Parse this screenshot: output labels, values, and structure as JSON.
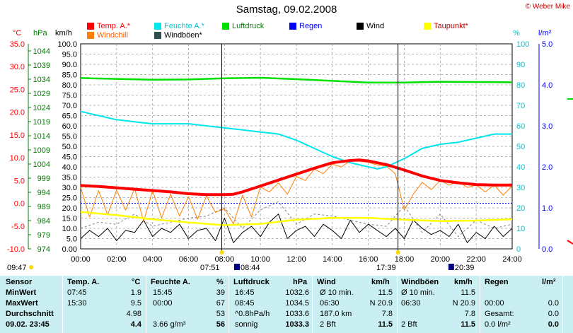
{
  "header": {
    "title": "Samstag, 09.02.2008",
    "copyright": "© Weber Mike"
  },
  "legend": [
    {
      "label": "Temp. A.*",
      "color": "#ff0000"
    },
    {
      "label": "Feuchte A.*",
      "color": "#00e5ee"
    },
    {
      "label": "Luftdruck",
      "color": "#00e000"
    },
    {
      "label": "Regen",
      "color": "#0000ff"
    },
    {
      "label": "Wind",
      "color": "#000000"
    },
    {
      "label": "Taupunkt*",
      "color": "#ffff00"
    },
    {
      "label": "Windchill",
      "color": "#ff8000"
    },
    {
      "label": "Windböen*",
      "color": "#2f4f4f"
    }
  ],
  "units": {
    "celsius": "°C",
    "hpa": "hPa",
    "kmh": "km/h",
    "percent": "%",
    "rain": "l/m²"
  },
  "axis_ticks": {
    "celsius": [
      "35.0",
      "30.0",
      "25.0",
      "20.0",
      "15.0",
      "10.0",
      "5.0",
      "0.0",
      "-5.0",
      "-10.0"
    ],
    "hpa": [
      "1044",
      "1039",
      "1034",
      "1029",
      "1024",
      "1019",
      "1014",
      "1009",
      "1004",
      "999",
      "994",
      "989",
      "984",
      "979",
      "974"
    ],
    "kmh": [
      "100.0",
      "95.0",
      "90.0",
      "85.0",
      "80.0",
      "75.0",
      "70.0",
      "65.0",
      "60.0",
      "55.0",
      "50.0",
      "45.0",
      "40.0",
      "35.0",
      "30.0",
      "25.0",
      "20.0",
      "15.0",
      "10.0",
      "5.0",
      "0.00"
    ],
    "percent": [
      "100",
      "90",
      "80",
      "70",
      "60",
      "50",
      "40",
      "30",
      "20",
      "10",
      "0"
    ],
    "rain": [
      "5.0",
      "4.0",
      "3.0",
      "2.0",
      "1.0",
      "0.0"
    ],
    "time": [
      "00:00",
      "02:00",
      "04:00",
      "06:00",
      "08:00",
      "10:00",
      "12:00",
      "14:00",
      "16:00",
      "18:00",
      "20:00",
      "22:00",
      "24:00"
    ]
  },
  "sun": {
    "sunrise": "07:51",
    "sunset": "17:39",
    "moonrise": "08:44",
    "moonset": "20:39",
    "left_time": "09:47"
  },
  "chart_data": {
    "type": "line",
    "title": "Samstag, 09.02.2008",
    "x_unit": "hours",
    "xlim": [
      0,
      24
    ],
    "ylim_celsius": [
      -10,
      35
    ],
    "ylim_kmh": [
      0,
      100
    ],
    "ylim_percent": [
      0,
      100
    ],
    "ylim_hpa": [
      974,
      1046.5
    ],
    "grid": true,
    "series": [
      {
        "name": "Temp. A.*",
        "axis": "celsius",
        "x": [
          0,
          1,
          2,
          3,
          4,
          5,
          6,
          7,
          8,
          8.5,
          9,
          10,
          11,
          12,
          13,
          14,
          15,
          15.5,
          16,
          17,
          18,
          19,
          20,
          21,
          22,
          23,
          24
        ],
        "y": [
          3.9,
          3.7,
          3.4,
          3.1,
          2.8,
          2.5,
          2.1,
          1.9,
          1.9,
          2.0,
          2.5,
          3.8,
          5.1,
          6.4,
          7.7,
          8.9,
          9.4,
          9.5,
          9.3,
          8.5,
          7.3,
          6.0,
          5.0,
          4.5,
          4.1,
          4.0,
          4.0
        ]
      },
      {
        "name": "Feuchte A.*",
        "axis": "percent",
        "x": [
          0,
          1,
          2,
          3,
          4,
          5,
          6,
          7,
          8,
          9,
          10,
          11,
          12,
          13,
          14,
          15,
          16,
          16.5,
          17,
          18,
          19,
          20,
          21,
          22,
          23,
          24
        ],
        "y": [
          67,
          65,
          63,
          62,
          61,
          61,
          61,
          60,
          59,
          58,
          57,
          56,
          53,
          49,
          45,
          42,
          40,
          39,
          40,
          44,
          49,
          51,
          52,
          54,
          56,
          56
        ]
      },
      {
        "name": "Luftdruck",
        "axis": "hpa",
        "x": [
          0,
          2,
          4,
          6,
          8,
          10,
          12,
          14,
          16,
          18,
          20,
          22,
          24
        ],
        "y": [
          1034.4,
          1034.1,
          1033.8,
          1033.9,
          1034.3,
          1034.5,
          1034.0,
          1033.4,
          1032.8,
          1032.8,
          1033.1,
          1033.0,
          1032.9
        ]
      },
      {
        "name": "Taupunkt*",
        "axis": "celsius",
        "x": [
          0,
          2,
          4,
          6,
          8,
          10,
          12,
          14,
          16,
          18,
          20,
          22,
          24
        ],
        "y": [
          -1.9,
          -2.6,
          -3.5,
          -4.2,
          -4.8,
          -4.5,
          -3.6,
          -3.2,
          -3.2,
          -3.6,
          -3.9,
          -3.8,
          -3.5
        ]
      },
      {
        "name": "Windchill",
        "axis": "celsius",
        "x": [
          0,
          0.5,
          1,
          1.5,
          2,
          2.5,
          3,
          3.5,
          4,
          4.5,
          5,
          5.5,
          6,
          6.5,
          7,
          7.5,
          8,
          8.5,
          9,
          9.5,
          10,
          10.5,
          11,
          11.5,
          12,
          12.5,
          13,
          13.5,
          14,
          14.5,
          15,
          15.5,
          16,
          16.5,
          17,
          17.5,
          18,
          18.5,
          19,
          19.5,
          20,
          20.5,
          21,
          21.5,
          22,
          22.5,
          23,
          23.5,
          24
        ],
        "y": [
          3.5,
          -3.0,
          2.8,
          -2.5,
          2.9,
          -1.5,
          3.2,
          -4.0,
          2.8,
          -3.2,
          2.0,
          -2.8,
          1.5,
          -3.5,
          1.6,
          -2.0,
          -1.2,
          -4.5,
          1.8,
          -3.0,
          3.6,
          2.5,
          4.5,
          2.0,
          5.9,
          5.0,
          7.5,
          6.5,
          8.6,
          8.0,
          9.3,
          9.2,
          9.0,
          8.4,
          8.2,
          6.5,
          -1.5,
          2.0,
          4.6,
          3.0,
          5.0,
          4.0,
          4.8,
          3.5,
          4.0,
          2.5,
          4.0,
          1.8,
          3.8
        ]
      },
      {
        "name": "Wind",
        "axis": "kmh",
        "x": [
          0,
          0.5,
          1,
          1.5,
          2,
          2.5,
          3,
          3.5,
          4,
          4.5,
          5,
          5.5,
          6,
          6.5,
          7,
          7.5,
          8,
          8.5,
          9,
          9.5,
          10,
          10.5,
          11,
          11.5,
          12,
          12.5,
          13,
          13.5,
          14,
          14.5,
          15,
          15.5,
          16,
          16.5,
          17,
          17.5,
          18,
          18.5,
          19,
          19.5,
          20,
          20.5,
          21,
          21.5,
          22,
          22.5,
          23,
          23.5,
          24
        ],
        "y": [
          5,
          9,
          6,
          10,
          4,
          9,
          8,
          14,
          6,
          10,
          8,
          12,
          5,
          9,
          10,
          4,
          15,
          3,
          8,
          11,
          6,
          13,
          17,
          5,
          9,
          11,
          6,
          12,
          9,
          5,
          14,
          8,
          12,
          9,
          6,
          10,
          5,
          14,
          10,
          7,
          9,
          6,
          12,
          3,
          8,
          5,
          11,
          6,
          10
        ]
      },
      {
        "name": "Windböen*",
        "axis": "kmh",
        "x": [
          0,
          1,
          2,
          3,
          4,
          5,
          6,
          7,
          8,
          9,
          10,
          11,
          12,
          13,
          14,
          15,
          16,
          17,
          18,
          19,
          20,
          21,
          22,
          23,
          24
        ],
        "y": [
          10,
          13,
          12,
          17,
          11,
          13,
          15,
          16,
          20,
          10,
          19,
          23,
          12,
          17,
          16,
          14,
          12,
          11,
          21,
          8,
          17,
          6,
          14,
          10,
          12
        ]
      }
    ]
  },
  "table": {
    "headers": {
      "sensor": "Sensor",
      "temp": "Temp. A.",
      "temp_unit": "°C",
      "feuchte": "Feuchte A.",
      "feuchte_unit": "%",
      "luft": "Luftdruck",
      "luft_unit": "hPa",
      "wind": "Wind",
      "wind_unit": "km/h",
      "boen": "Windböen",
      "boen_unit": "km/h",
      "regen": "Regen",
      "regen_unit": "l/m²"
    },
    "rows": [
      {
        "label": "MinWert",
        "temp_time": "07:45",
        "temp_val": "1.9",
        "feu_time": "15:45",
        "feu_val": "39",
        "luft_time": "16:45",
        "luft_val": "1032.6",
        "wind_a": "Ø 10 min.",
        "wind_b": "11.5",
        "boen_a": "Ø 10 min.",
        "boen_b": "11.5",
        "regen_a": "",
        "regen_b": ""
      },
      {
        "label": "MaxWert",
        "temp_time": "15:30",
        "temp_val": "9.5",
        "feu_time": "00:00",
        "feu_val": "67",
        "luft_time": "08:45",
        "luft_val": "1034.5",
        "wind_a": "06:30",
        "wind_b": "N 20.9",
        "boen_a": "06:30",
        "boen_b": "N 20.9",
        "regen_a": "00:00",
        "regen_b": "0.0"
      },
      {
        "label": "Durchschnitt",
        "temp_time": "",
        "temp_val": "4.98",
        "feu_time": "",
        "feu_val": "53",
        "luft_time": "^0.8hPa/h",
        "luft_val": "1033.6",
        "wind_a": "187.0 km",
        "wind_b": "7.8",
        "boen_a": "",
        "boen_b": "7.8",
        "regen_a": "Gesamt:",
        "regen_b": "0.0"
      },
      {
        "label": "09.02. 23:45",
        "temp_time": "",
        "temp_val": "4.4",
        "feu_time": "3.66 g/m³",
        "feu_val": "56",
        "luft_time": "sonnig",
        "luft_val": "1033.3",
        "wind_a": "2 Bft",
        "wind_b": "11.5",
        "boen_a": "2 Bft",
        "boen_b": "11.5",
        "regen_a": "0.0 l/m²",
        "regen_b": "0.0"
      }
    ]
  }
}
